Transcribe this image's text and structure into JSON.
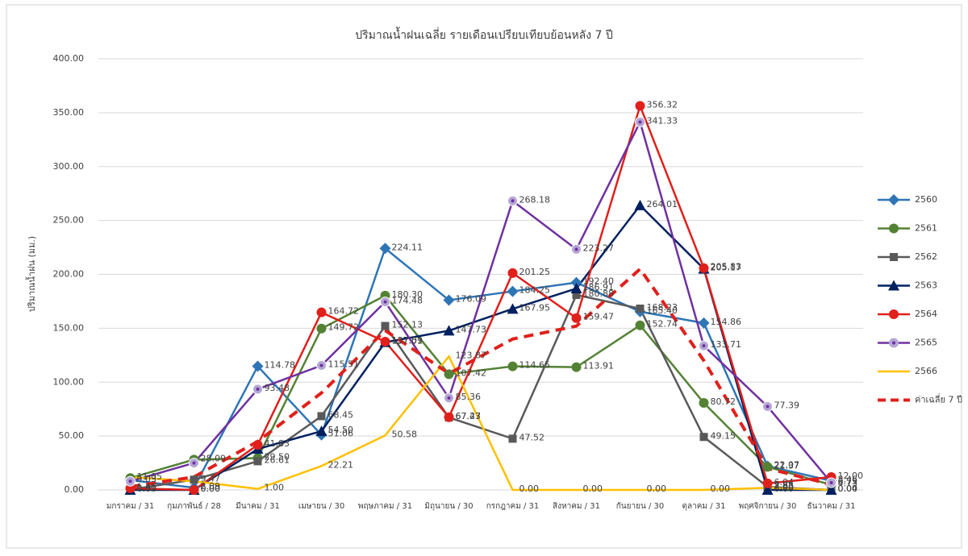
{
  "chart_data": {
    "type": "line",
    "title": "ปริมาณน้ำฝนเฉลี่ย รายเดือนเปรียบเทียบย้อนหลัง 7 ปี",
    "y_label": "ปริมาณน้ำฝน (มม.)",
    "categories": [
      "มกราคม / 31",
      "กุมภาพันธ์ / 28",
      "มีนาคม / 31",
      "เมษายน / 30",
      "พฤษภาคม / 31",
      "มิถุนายน / 30",
      "กรกฎาคม / 31",
      "สิงหาคม / 31",
      "กันยายน / 30",
      "ตุลาคม / 31",
      "พฤศจิกายน / 30",
      "ธันวาคม / 31"
    ],
    "ylim": [
      0,
      400
    ],
    "yticks": [
      {
        "value": 0,
        "label": "0.00"
      },
      {
        "value": 50,
        "label": "50.00"
      },
      {
        "value": 100,
        "label": "100.00"
      },
      {
        "value": 150,
        "label": "150.00"
      },
      {
        "value": 200,
        "label": "200.00"
      },
      {
        "value": 250,
        "label": "250.00"
      },
      {
        "value": 300,
        "label": "300.00"
      },
      {
        "value": 350,
        "label": "350.00"
      },
      {
        "value": 400,
        "label": "400.00"
      }
    ],
    "grid": true,
    "legend": "right",
    "series": [
      {
        "name": "2560",
        "color": "#2e75b6",
        "marker": "diamond",
        "values": [
          9.03,
          2.09,
          114.78,
          51.06,
          224.11,
          176.09,
          184.25,
          192.4,
          165.4,
          154.86,
          22.07,
          8.46
        ],
        "value_labels": [
          "9.03",
          "2.09",
          "114.78",
          "51.06",
          "224.11",
          "176.09",
          "184.25",
          "192.40",
          "165.40",
          "154.86",
          "22.07",
          "8.46"
        ]
      },
      {
        "name": "2561",
        "color": "#548235",
        "marker": "circle",
        "values": [
          11.05,
          28.09,
          29.5,
          149.72,
          180.3,
          107.42,
          114.65,
          113.91,
          152.74,
          80.72,
          21.37,
          4.73
        ],
        "value_labels": [
          "11.05",
          "28.09",
          "29.50",
          "149.72",
          "180.30",
          "107.42",
          "114.65",
          "113.91",
          "152.74",
          "80.72",
          "21.37",
          "4.73"
        ]
      },
      {
        "name": "2562",
        "color": "#595959",
        "marker": "square",
        "values": [
          0.31,
          9.47,
          26.61,
          68.45,
          152.13,
          67.23,
          47.52,
          180.88,
          168.23,
          49.15,
          2.85,
          0
        ],
        "value_labels": [
          "0.31",
          "9.47",
          "26.61",
          "68.45",
          "152.13",
          "67.23",
          "47.52",
          "180.88",
          "168.23",
          "49.15",
          "2.85",
          "0.00"
        ]
      },
      {
        "name": "2563",
        "color": "#002060",
        "marker": "triangle",
        "values": [
          0,
          0,
          38,
          54.5,
          137.01,
          147.73,
          167.95,
          186.91,
          264.01,
          205.17,
          0,
          0.04
        ],
        "value_labels": [
          "0.00",
          "0.00",
          null,
          "54.50",
          "137.01",
          "147.73",
          "167.95",
          "186.91",
          "264.01",
          "205.17",
          "0.00",
          "0.04"
        ]
      },
      {
        "name": "2564",
        "color": "#e0201b",
        "marker": "circle",
        "values": [
          1.45,
          0,
          41.83,
          164.72,
          137.59,
          67.47,
          201.25,
          159.47,
          356.32,
          205.83,
          6.04,
          12
        ],
        "value_labels": [
          "1.45",
          "0.00",
          "41.83",
          "164.72",
          "137.59",
          "67.47",
          "201.25",
          "159.47",
          "356.32",
          "205.83",
          "6.04",
          "12.00"
        ]
      },
      {
        "name": "2565",
        "color": "#7030a0",
        "marker": "dot",
        "values": [
          8,
          25,
          93.48,
          115.51,
          174.48,
          85.36,
          268.18,
          223.27,
          341.33,
          133.71,
          77.39,
          6.73
        ],
        "value_labels": [
          null,
          null,
          "93.48",
          "115.51",
          "174.48",
          "85.36",
          "268.18",
          "223.27",
          "341.33",
          "133.71",
          "77.39",
          "6.73"
        ]
      },
      {
        "name": "2566",
        "color": "#ffc000",
        "marker": "none",
        "values": [
          12,
          8,
          1,
          22.21,
          50.58,
          123.87,
          0,
          0,
          0,
          0,
          2,
          0
        ],
        "value_labels": [
          null,
          null,
          "1.00",
          "22.21",
          "50.58",
          "123.87",
          "0.00",
          "0.00",
          "0.00",
          "0.00",
          "2.00",
          null
        ]
      },
      {
        "name": "ค่าเฉลี่ย 7 ปี",
        "color": "#e0201b",
        "marker": "none",
        "dashed": true,
        "values": [
          3,
          12,
          45,
          90,
          148,
          108,
          140,
          152,
          205,
          120,
          20,
          5
        ]
      }
    ]
  }
}
